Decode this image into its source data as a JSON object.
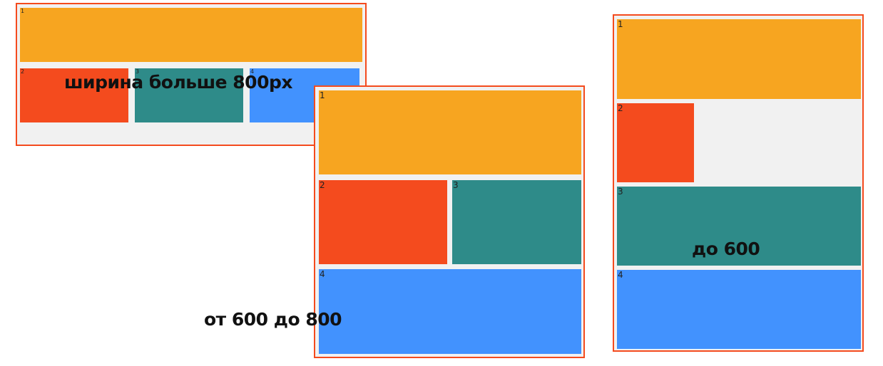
{
  "colors": {
    "frame_border": "#f44b1e",
    "frame_bg": "#f1f1f1",
    "box1": "#f7a520",
    "box2": "#f44b1e",
    "box3": "#2e8b89",
    "box4": "#4292fe"
  },
  "layouts": {
    "wide": {
      "labels": [
        "1",
        "2",
        "3",
        "4"
      ]
    },
    "medium": {
      "labels": [
        "1",
        "2",
        "3",
        "4"
      ]
    },
    "narrow": {
      "labels": [
        "1",
        "2",
        "3",
        "4"
      ]
    }
  },
  "captions": {
    "wide": "ширина больше 800px",
    "medium": "от 600 до 800",
    "narrow": "до 600"
  }
}
